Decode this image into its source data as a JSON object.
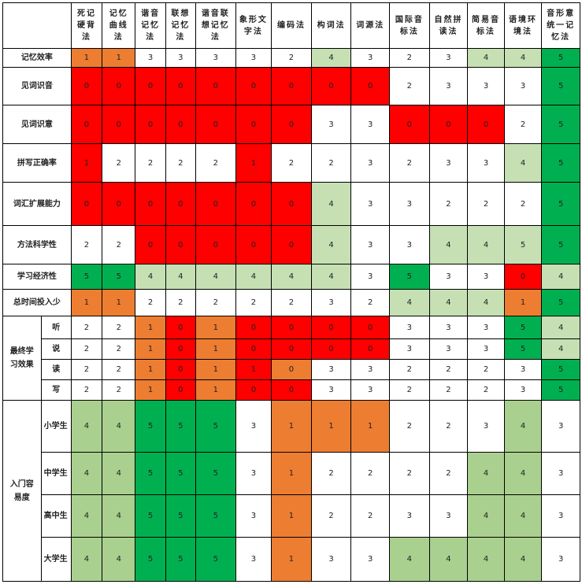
{
  "columns": [
    "死记硬背法",
    "记忆曲线法",
    "谐音记忆法",
    "联想记忆法",
    "谐音联想记忆法",
    "象形文字法",
    "编码法",
    "构词法",
    "词源法",
    "国际音标法",
    "自然拼读法",
    "简易音标法",
    "语境环境法",
    "音形意统一记忆法"
  ],
  "colors": {
    "red": "#ff0000",
    "orange": "#ed7d31",
    "light_green": "#c6e0b4",
    "mid_green": "#a9d08e",
    "dark_green": "#00b050",
    "white": "#ffffff"
  },
  "rows": [
    {
      "label": "记忆效率",
      "values": [
        "1",
        "1",
        "3",
        "3",
        "3",
        "3",
        "2",
        "4",
        "3",
        "2",
        "3",
        "4",
        "4",
        "5"
      ]
    },
    {
      "label": "见词识音",
      "values": [
        "0",
        "0",
        "0",
        "0",
        "0",
        "0",
        "0",
        "0",
        "0",
        "2",
        "3",
        "3",
        "3",
        "5"
      ]
    },
    {
      "label": "见词识意",
      "values": [
        "0",
        "0",
        "0",
        "0",
        "0",
        "0",
        "0",
        "3",
        "3",
        "0",
        "0",
        "0",
        "2",
        "5"
      ]
    },
    {
      "label": "拼写正确率",
      "values": [
        "1",
        "2",
        "2",
        "2",
        "2",
        "1",
        "2",
        "2",
        "3",
        "2",
        "3",
        "3",
        "4",
        "5"
      ]
    },
    {
      "label": "词汇扩展能力",
      "values": [
        "0",
        "0",
        "0",
        "0",
        "0",
        "0",
        "0",
        "4",
        "3",
        "3",
        "2",
        "2",
        "2",
        "5"
      ]
    },
    {
      "label": "方法科学性",
      "values": [
        "2",
        "2",
        "0",
        "0",
        "0",
        "0",
        "0",
        "4",
        "3",
        "3",
        "4",
        "4",
        "5",
        "5"
      ]
    },
    {
      "label": "学习经济性",
      "values": [
        "5",
        "5",
        "4",
        "4",
        "4",
        "4",
        "4",
        "4",
        "3",
        "5",
        "3",
        "3",
        "0",
        "4"
      ]
    },
    {
      "label": "总时间投入少",
      "values": [
        "1",
        "1",
        "2",
        "2",
        "2",
        "2",
        "2",
        "3",
        "2",
        "4",
        "4",
        "4",
        "1",
        "5"
      ]
    }
  ],
  "effect": {
    "label": "最终学习效果",
    "rows": [
      {
        "label": "听",
        "values": [
          "2",
          "2",
          "1",
          "0",
          "1",
          "0",
          "0",
          "0",
          "0",
          "3",
          "3",
          "3",
          "5",
          "4"
        ]
      },
      {
        "label": "说",
        "values": [
          "2",
          "2",
          "1",
          "0",
          "1",
          "0",
          "0",
          "0",
          "0",
          "3",
          "3",
          "3",
          "5",
          "4"
        ]
      },
      {
        "label": "读",
        "values": [
          "2",
          "2",
          "1",
          "0",
          "1",
          "1",
          "0",
          "3",
          "3",
          "2",
          "2",
          "2",
          "3",
          "5"
        ]
      },
      {
        "label": "写",
        "values": [
          "2",
          "2",
          "1",
          "0",
          "1",
          "0",
          "0",
          "3",
          "3",
          "2",
          "2",
          "2",
          "3",
          "5"
        ]
      }
    ]
  },
  "ease": {
    "label": "入门容易度",
    "rows": [
      {
        "label": "小学生",
        "values": [
          "4",
          "4",
          "5",
          "5",
          "5",
          "3",
          "1",
          "1",
          "1",
          "2",
          "2",
          "3",
          "4",
          "3"
        ]
      },
      {
        "label": "中学生",
        "values": [
          "4",
          "4",
          "5",
          "5",
          "5",
          "3",
          "1",
          "2",
          "2",
          "2",
          "2",
          "4",
          "4",
          "3"
        ]
      },
      {
        "label": "高中生",
        "values": [
          "4",
          "4",
          "5",
          "5",
          "5",
          "3",
          "1",
          "2",
          "2",
          "3",
          "3",
          "4",
          "4",
          "3"
        ]
      },
      {
        "label": "大学生",
        "values": [
          "4",
          "4",
          "5",
          "5",
          "5",
          "3",
          "1",
          "3",
          "3",
          "4",
          "4",
          "4",
          "4",
          "3"
        ]
      }
    ]
  }
}
